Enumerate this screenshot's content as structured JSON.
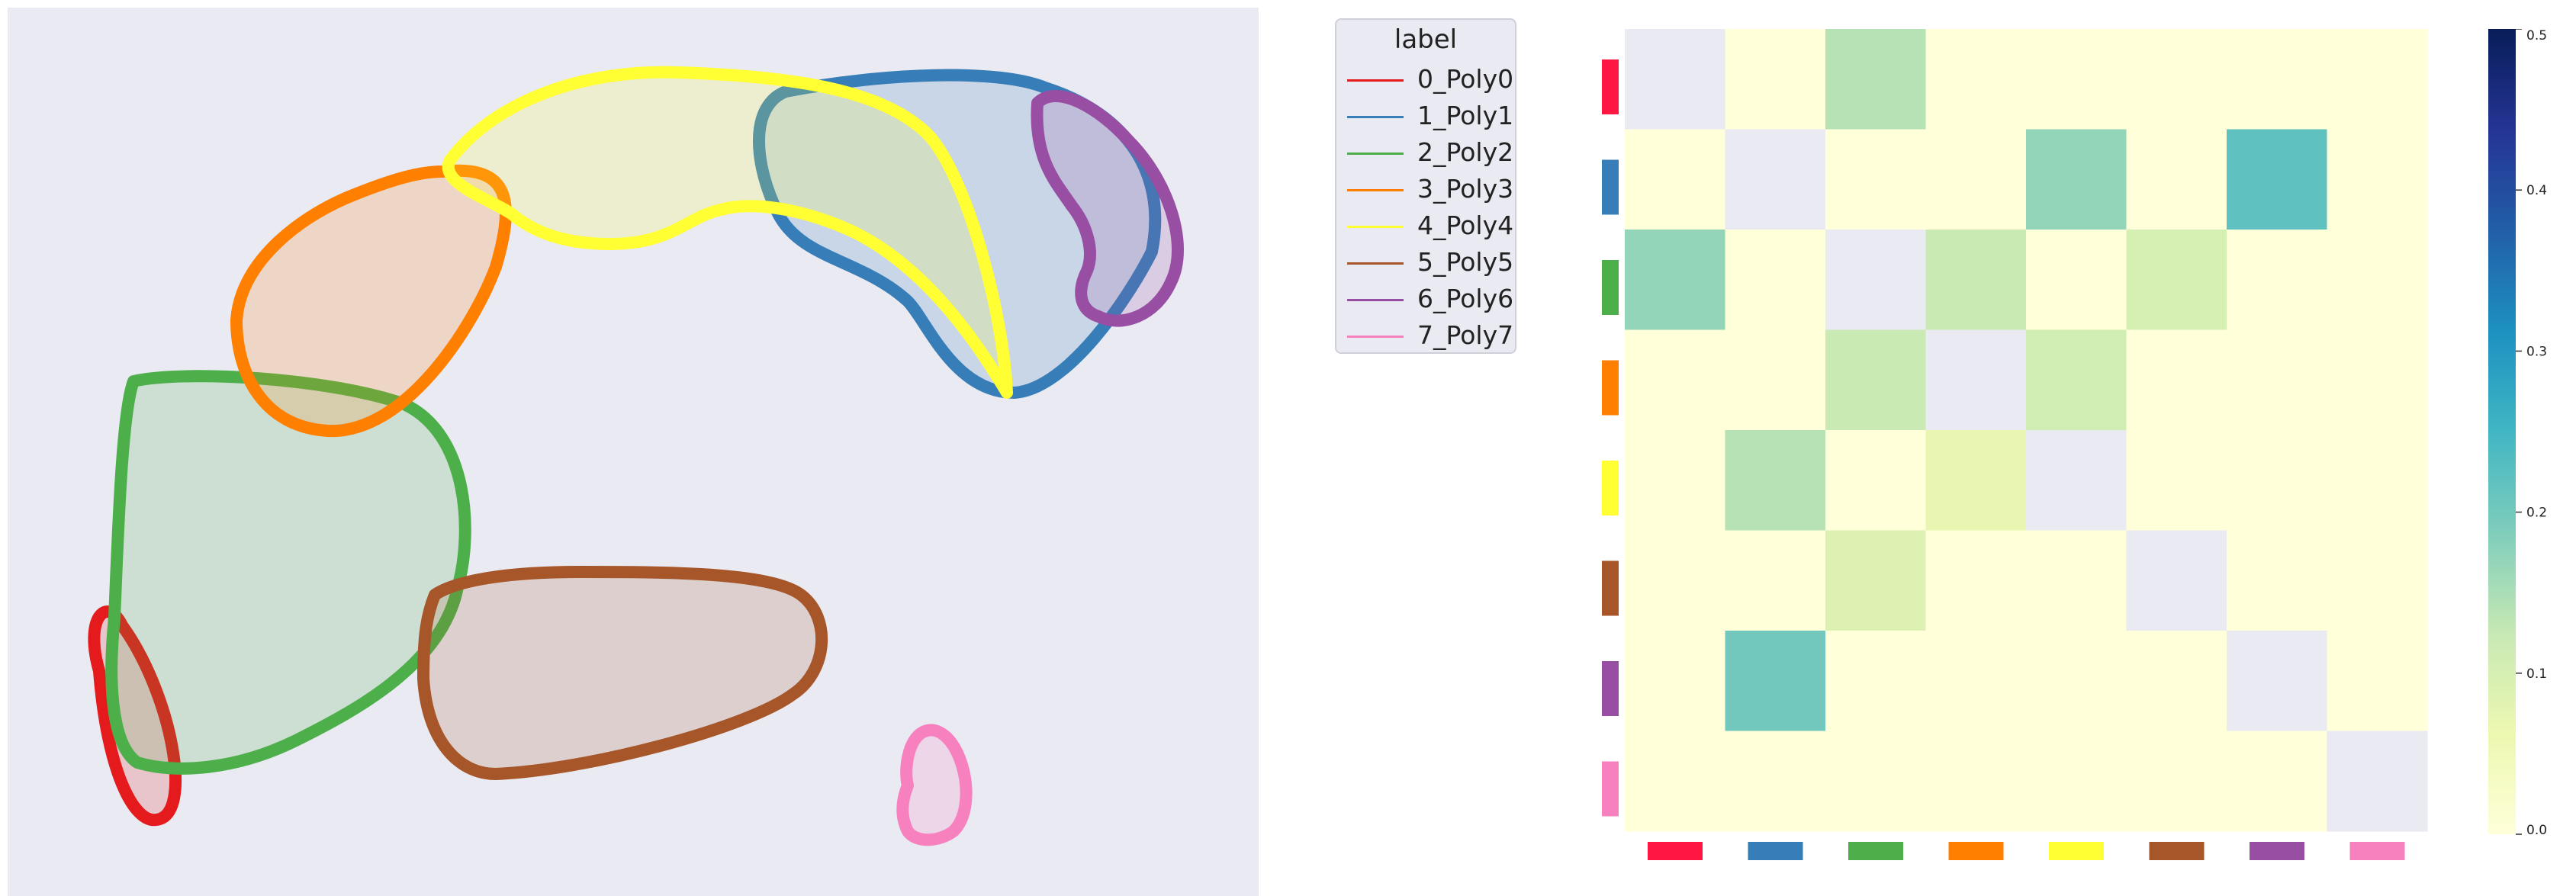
{
  "chart_data": [
    {
      "type": "polygon-overlay",
      "background": "#eaeaf2",
      "legend": {
        "title": "label",
        "placement": "right of plot",
        "entries": [
          {
            "label": "0_Poly0",
            "color": "#e41a1c"
          },
          {
            "label": "1_Poly1",
            "color": "#377eb8"
          },
          {
            "label": "2_Poly2",
            "color": "#4daf4a"
          },
          {
            "label": "3_Poly3",
            "color": "#ff7f00"
          },
          {
            "label": "4_Poly4",
            "color": "#ffff33"
          },
          {
            "label": "5_Poly5",
            "color": "#a65628"
          },
          {
            "label": "6_Poly6",
            "color": "#984ea3"
          },
          {
            "label": "7_Poly7",
            "color": "#f781bf"
          }
        ]
      }
    },
    {
      "type": "heatmap",
      "row_colors": [
        "#ff1744",
        "#377eb8",
        "#4daf4a",
        "#ff7f00",
        "#ffff33",
        "#a65628",
        "#984ea3",
        "#f781bf"
      ],
      "col_colors": [
        "#ff1744",
        "#377eb8",
        "#4daf4a",
        "#ff7f00",
        "#ffff33",
        "#a65628",
        "#984ea3",
        "#f781bf"
      ],
      "diagonal": "masked",
      "values": [
        [
          null,
          0.0,
          0.14,
          0.0,
          0.0,
          0.0,
          0.0,
          0.0
        ],
        [
          0.0,
          null,
          0.0,
          0.0,
          0.17,
          0.0,
          0.22,
          0.0
        ],
        [
          0.17,
          0.0,
          null,
          0.12,
          0.0,
          0.1,
          0.0,
          0.0
        ],
        [
          0.0,
          0.0,
          0.12,
          null,
          0.11,
          0.0,
          0.0,
          0.0
        ],
        [
          0.0,
          0.14,
          0.0,
          0.07,
          null,
          0.0,
          0.0,
          0.0
        ],
        [
          0.0,
          0.0,
          0.09,
          0.0,
          0.0,
          null,
          0.0,
          0.0
        ],
        [
          0.0,
          0.2,
          0.0,
          0.0,
          0.0,
          0.0,
          null,
          0.0
        ],
        [
          0.0,
          0.0,
          0.0,
          0.0,
          0.0,
          0.0,
          0.0,
          null
        ]
      ],
      "colormap": "YlGnBu",
      "vmin": 0.0,
      "vmax": 0.5,
      "colorbar_ticks": [
        "0.0",
        "0.1",
        "0.2",
        "0.3",
        "0.4",
        "0.5"
      ]
    }
  ]
}
